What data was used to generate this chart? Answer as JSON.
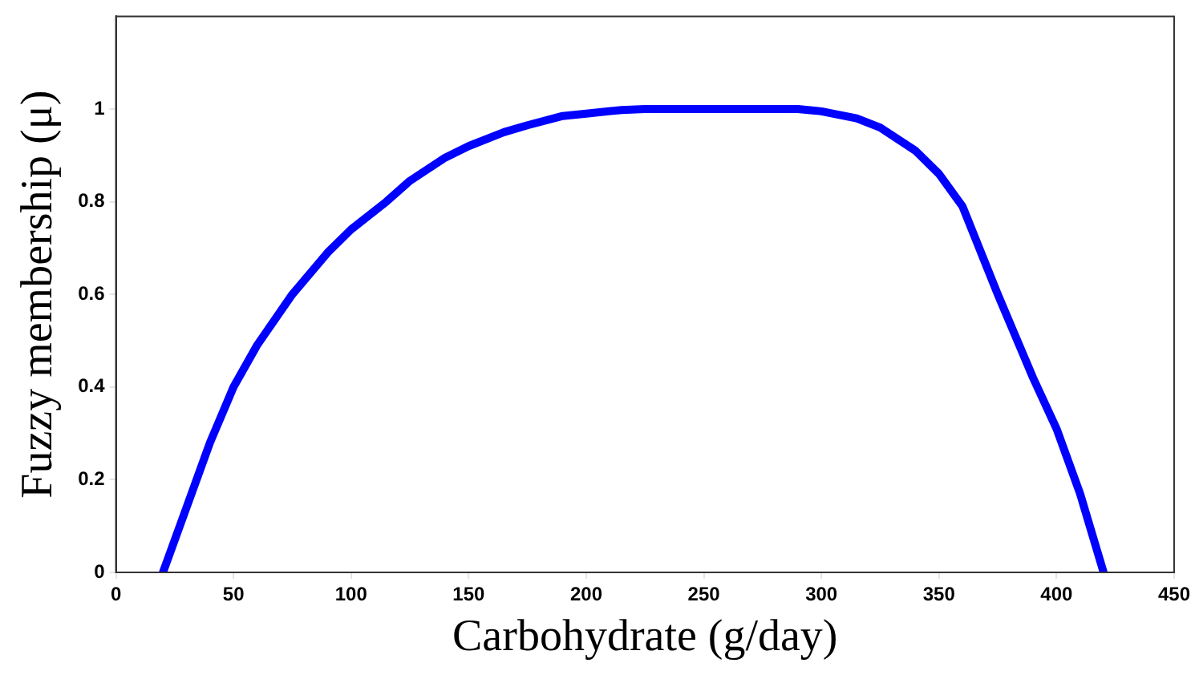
{
  "chart_data": {
    "type": "line",
    "xlabel": "Carbohydrate (g/day)",
    "ylabel": "Fuzzy membership (μ)",
    "x": [
      20,
      30,
      40,
      50,
      60,
      75,
      90,
      100,
      115,
      125,
      140,
      150,
      165,
      175,
      190,
      200,
      215,
      225,
      250,
      275,
      290,
      300,
      315,
      325,
      340,
      350,
      360,
      375,
      390,
      400,
      410,
      420
    ],
    "series": [
      {
        "color": "#0000ff",
        "values": [
          0,
          0.14,
          0.28,
          0.4,
          0.49,
          0.6,
          0.69,
          0.74,
          0.8,
          0.845,
          0.895,
          0.92,
          0.95,
          0.965,
          0.985,
          0.99,
          0.998,
          1,
          1,
          1,
          1,
          0.995,
          0.98,
          0.96,
          0.91,
          0.86,
          0.79,
          0.6,
          0.42,
          0.31,
          0.17,
          0
        ]
      }
    ],
    "xlim": [
      0,
      450
    ],
    "xticks": [
      0,
      50,
      100,
      150,
      200,
      250,
      300,
      350,
      400,
      450
    ],
    "ylim": [
      0,
      1.2
    ],
    "yticks": [
      0,
      0.2,
      0.4,
      0.6,
      0.8,
      1
    ],
    "grid": false,
    "legend": false,
    "marker": "none",
    "line_style": "solid"
  }
}
